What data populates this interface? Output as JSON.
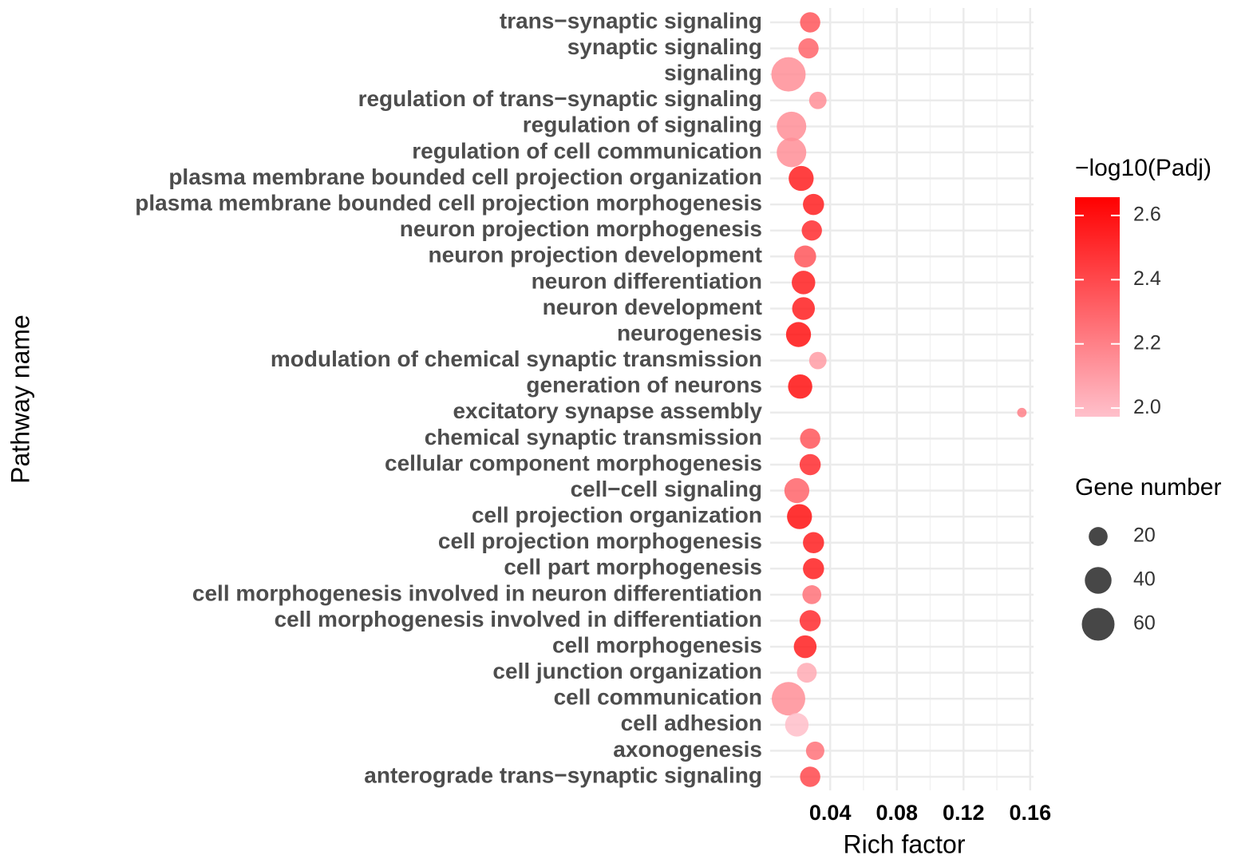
{
  "chart_data": {
    "type": "bubble",
    "x_label": "Rich factor",
    "y_label": "Pathway name",
    "categories": [
      "trans−synaptic signaling",
      "synaptic signaling",
      "signaling",
      "regulation of trans−synaptic signaling",
      "regulation of signaling",
      "regulation of cell communication",
      "plasma membrane bounded cell projection organization",
      "plasma membrane bounded cell projection morphogenesis",
      "neuron projection morphogenesis",
      "neuron projection development",
      "neuron differentiation",
      "neuron development",
      "neurogenesis",
      "modulation of chemical synaptic transmission",
      "generation of neurons",
      "excitatory synapse assembly",
      "chemical synaptic transmission",
      "cellular component morphogenesis",
      "cell−cell signaling",
      "cell projection organization",
      "cell projection morphogenesis",
      "cell part morphogenesis",
      "cell morphogenesis involved in neuron differentiation",
      "cell morphogenesis involved in differentiation",
      "cell morphogenesis",
      "cell junction organization",
      "cell communication",
      "cell adhesion",
      "axonogenesis",
      "anterograde trans−synaptic signaling"
    ],
    "x": [
      0.028,
      0.027,
      0.015,
      0.0326,
      0.0168,
      0.0168,
      0.0226,
      0.03,
      0.029,
      0.025,
      0.024,
      0.024,
      0.021,
      0.0326,
      0.022,
      0.155,
      0.028,
      0.028,
      0.02,
      0.0216,
      0.03,
      0.03,
      0.029,
      0.028,
      0.025,
      0.026,
      0.015,
      0.02,
      0.031,
      0.028
    ],
    "size": [
      23,
      23,
      66,
      17,
      49,
      49,
      35,
      25,
      23,
      27,
      31,
      29,
      35,
      17,
      33,
      5,
      23,
      25,
      35,
      35,
      25,
      25,
      20,
      25,
      29,
      22,
      63,
      31,
      19,
      23
    ],
    "color_values": [
      2.35,
      2.3,
      2.15,
      2.15,
      2.15,
      2.15,
      2.55,
      2.55,
      2.5,
      2.35,
      2.55,
      2.55,
      2.6,
      2.1,
      2.6,
      2.2,
      2.35,
      2.5,
      2.3,
      2.6,
      2.55,
      2.55,
      2.25,
      2.5,
      2.55,
      2.05,
      2.15,
      1.98,
      2.25,
      2.4
    ],
    "xlim": [
      0.004,
      0.162
    ],
    "xticks": [
      0.04,
      0.08,
      0.12,
      0.16
    ],
    "grid": true,
    "color_legend": {
      "title": "−log10(Padj)",
      "range": [
        1.973,
        2.657
      ],
      "colors": [
        "#ffc0cb",
        "#ff0000"
      ],
      "ticks": [
        {
          "value": 2.0,
          "label": "2.0"
        },
        2.2,
        2.4,
        2.6
      ]
    },
    "size_legend": {
      "title": "Gene number",
      "values": [
        20,
        40,
        60
      ]
    }
  }
}
